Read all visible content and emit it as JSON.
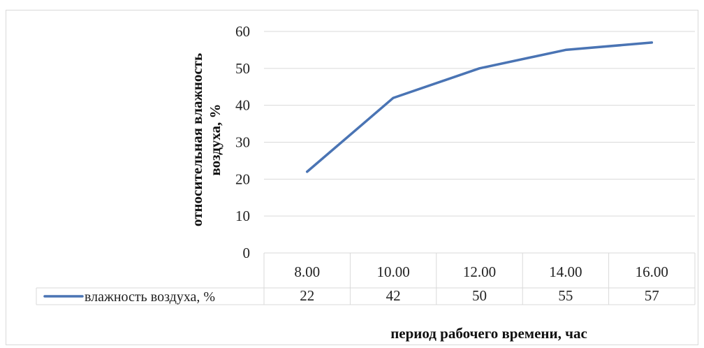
{
  "chart_data": {
    "type": "line",
    "categories": [
      "8.00",
      "10.00",
      "12.00",
      "14.00",
      "16.00"
    ],
    "series": [
      {
        "name": "влажность воздуха, %",
        "values": [
          22,
          42,
          50,
          55,
          57
        ]
      }
    ],
    "xlabel": "период рабочего времени, час",
    "ylabel_line1": "относительная влажность",
    "ylabel_line2": "воздуха, %",
    "ylim": [
      0,
      60
    ],
    "yticks": [
      0,
      10,
      20,
      30,
      40,
      50,
      60
    ],
    "grid": true,
    "legend": "data-table",
    "line_color": "#4a74b4"
  }
}
